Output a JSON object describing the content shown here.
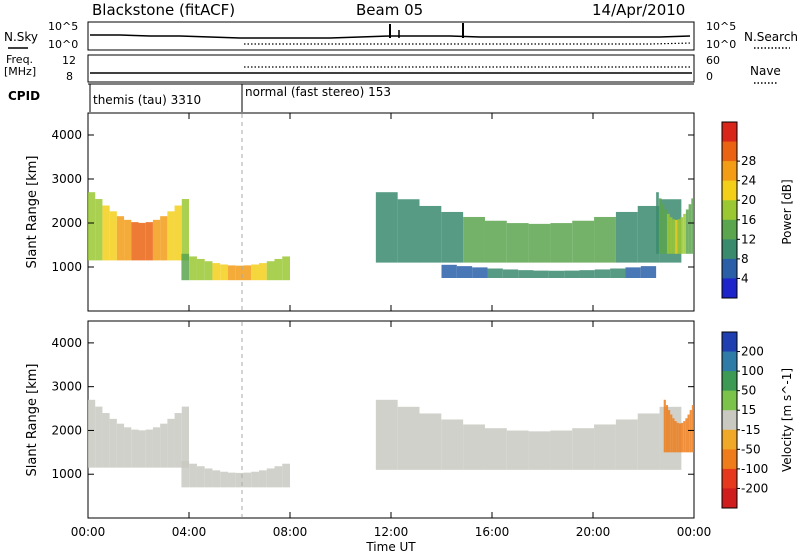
{
  "header": {
    "title": "Blackstone (fitACF)",
    "beam": "Beam 05",
    "date": "14/Apr/2010"
  },
  "top_panels": {
    "nsky_label": "N.Sky",
    "nsky_ticks": [
      "10^5",
      "10^0"
    ],
    "nsearch_label": "N.Search",
    "freq_label_1": "Freq.",
    "freq_label_2": "[MHz]",
    "freq_ticks": [
      "12",
      "8"
    ],
    "nave_label": "Nave",
    "nave_ticks": [
      "60",
      "0"
    ],
    "cpid_label": "CPID",
    "cpid_segments": [
      {
        "label": "themis (tau) 3310",
        "start_hour": 0
      },
      {
        "label": "normal (fast stereo) 153",
        "start_hour": 6
      }
    ]
  },
  "chart_data": [
    {
      "type": "heatmap",
      "title": "",
      "xlabel": "Time UT",
      "ylabel": "Slant Range [km]",
      "xlim": [
        0,
        24
      ],
      "ylim": [
        0,
        4500
      ],
      "x_ticks": [
        "00:00",
        "04:00",
        "08:00",
        "12:00",
        "16:00",
        "20:00",
        "00:00"
      ],
      "y_ticks": [
        "1000",
        "2000",
        "3000",
        "4000"
      ],
      "colorbar": {
        "label": "Power [dB]",
        "ticks": [
          "4",
          "8",
          "12",
          "16",
          "20",
          "24",
          "28"
        ],
        "colors": [
          "#1d24c9",
          "#2a5fa8",
          "#3a8a6e",
          "#5aa54e",
          "#9bc832",
          "#f3cf1a",
          "#f39c16",
          "#ea6312",
          "#d8261a"
        ]
      },
      "bands": [
        {
          "t0": 0.0,
          "t1": 4.0,
          "r0": 1150,
          "r1": 2700,
          "peak": 26
        },
        {
          "t0": 3.7,
          "t1": 8.0,
          "r0": 700,
          "r1": 1300,
          "peak": 22
        },
        {
          "t0": 11.4,
          "t1": 23.5,
          "r0": 1100,
          "r1": 2700,
          "peak": 12
        },
        {
          "t0": 14.0,
          "t1": 22.5,
          "r0": 750,
          "r1": 1050,
          "peak": 8
        },
        {
          "t0": 22.5,
          "t1": 24.0,
          "r0": 1300,
          "r1": 2700,
          "peak": 16
        }
      ]
    },
    {
      "type": "heatmap",
      "title": "",
      "xlabel": "Time UT",
      "ylabel": "Slant Range [km]",
      "xlim": [
        0,
        24
      ],
      "ylim": [
        0,
        4500
      ],
      "x_ticks": [
        "00:00",
        "04:00",
        "08:00",
        "12:00",
        "16:00",
        "20:00",
        "00:00"
      ],
      "y_ticks": [
        "1000",
        "2000",
        "3000",
        "4000"
      ],
      "colorbar": {
        "label": "Velocity [m s^-1]",
        "ticks": [
          "200",
          "100",
          "50",
          "15",
          "-15",
          "-50",
          "-100",
          "-200"
        ],
        "colors": [
          "#1f3fb0",
          "#2f7ba8",
          "#3d9a55",
          "#7cc34a",
          "#c9c9c2",
          "#f0a828",
          "#ef7c1a",
          "#e5381c",
          "#cf1c1c"
        ]
      },
      "bands": [
        {
          "t0": 0.0,
          "t1": 4.0,
          "r0": 1150,
          "r1": 2700,
          "value": 0
        },
        {
          "t0": 3.7,
          "t1": 8.0,
          "r0": 700,
          "r1": 1300,
          "value": 0
        },
        {
          "t0": 11.4,
          "t1": 23.5,
          "r0": 1100,
          "r1": 2700,
          "value": 0
        },
        {
          "t0": 22.8,
          "t1": 24.0,
          "r0": 1500,
          "r1": 2700,
          "value": -80
        }
      ]
    }
  ]
}
